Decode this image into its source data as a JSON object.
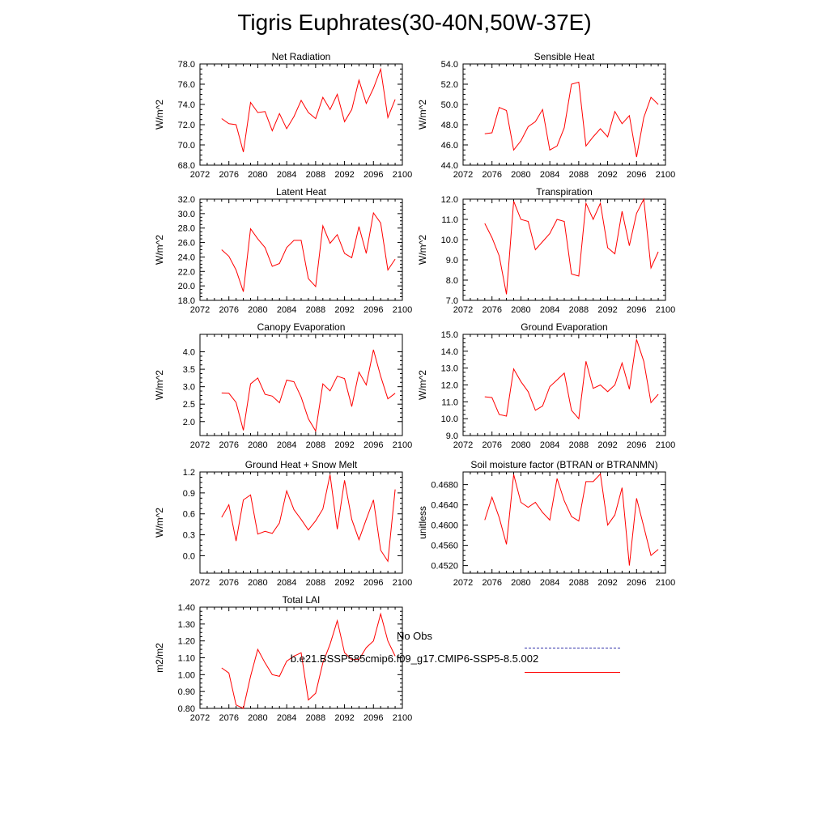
{
  "title": "Tigris Euphrates(30-40N,50W-37E)",
  "legend": {
    "obs_label": "No Obs",
    "model_label": "b.e21.BSSP585cmip6.f09_g17.CMIP6-SSP5-8.5.002",
    "model_color": "#ff0000",
    "obs_color": "#3333aa"
  },
  "chart_data": [
    {
      "type": "line",
      "title": "Net Radiation",
      "ylabel": "W/m^2",
      "xlim": [
        2072,
        2100
      ],
      "xticks": [
        "2072",
        "2076",
        "2080",
        "2084",
        "2088",
        "2092",
        "2096",
        "2100"
      ],
      "ylim": [
        68,
        78
      ],
      "yticks": [
        "68.0",
        "70.0",
        "72.0",
        "74.0",
        "76.0",
        "78.0"
      ],
      "ytick_values": [
        68,
        70,
        72,
        74,
        76,
        78
      ],
      "x": [
        2075,
        2076,
        2077,
        2078,
        2079,
        2080,
        2081,
        2082,
        2083,
        2084,
        2085,
        2086,
        2087,
        2088,
        2089,
        2090,
        2091,
        2092,
        2093,
        2094,
        2095,
        2096,
        2097,
        2098,
        2099
      ],
      "values": [
        72.6,
        72.1,
        72.0,
        69.3,
        74.2,
        73.2,
        73.3,
        71.4,
        73.1,
        71.6,
        72.8,
        74.4,
        73.2,
        72.6,
        74.7,
        73.5,
        75.0,
        72.3,
        73.5,
        76.4,
        74.1,
        75.6,
        77.5,
        72.7,
        74.5
      ]
    },
    {
      "type": "line",
      "title": "Sensible Heat",
      "ylabel": "W/m^2",
      "xlim": [
        2072,
        2100
      ],
      "xticks": [
        "2072",
        "2076",
        "2080",
        "2084",
        "2088",
        "2092",
        "2096",
        "2100"
      ],
      "ylim": [
        44,
        54
      ],
      "yticks": [
        "44.0",
        "46.0",
        "48.0",
        "50.0",
        "52.0",
        "54.0"
      ],
      "ytick_values": [
        44,
        46,
        48,
        50,
        52,
        54
      ],
      "x": [
        2075,
        2076,
        2077,
        2078,
        2079,
        2080,
        2081,
        2082,
        2083,
        2084,
        2085,
        2086,
        2087,
        2088,
        2089,
        2090,
        2091,
        2092,
        2093,
        2094,
        2095,
        2096,
        2097,
        2098,
        2099
      ],
      "values": [
        47.1,
        47.2,
        49.7,
        49.4,
        45.5,
        46.4,
        47.8,
        48.3,
        49.5,
        45.5,
        45.9,
        47.7,
        52.0,
        52.2,
        45.9,
        46.8,
        47.6,
        46.8,
        49.3,
        48.1,
        48.9,
        44.8,
        48.7,
        50.7,
        50.0
      ]
    },
    {
      "type": "line",
      "title": "Latent Heat",
      "ylabel": "W/m^2",
      "xlim": [
        2072,
        2100
      ],
      "xticks": [
        "2072",
        "2076",
        "2080",
        "2084",
        "2088",
        "2092",
        "2096",
        "2100"
      ],
      "ylim": [
        18,
        32
      ],
      "yticks": [
        "18.0",
        "20.0",
        "22.0",
        "24.0",
        "26.0",
        "28.0",
        "30.0",
        "32.0"
      ],
      "ytick_values": [
        18,
        20,
        22,
        24,
        26,
        28,
        30,
        32
      ],
      "x": [
        2075,
        2076,
        2077,
        2078,
        2079,
        2080,
        2081,
        2082,
        2083,
        2084,
        2085,
        2086,
        2087,
        2088,
        2089,
        2090,
        2091,
        2092,
        2093,
        2094,
        2095,
        2096,
        2097,
        2098,
        2099
      ],
      "values": [
        25.0,
        24.1,
        22.2,
        19.2,
        27.9,
        26.5,
        25.3,
        22.7,
        23.1,
        25.3,
        26.3,
        26.3,
        21.0,
        19.9,
        28.3,
        25.9,
        27.1,
        24.5,
        23.9,
        28.2,
        24.5,
        30.1,
        28.7,
        22.2,
        23.7
      ]
    },
    {
      "type": "line",
      "title": "Transpiration",
      "ylabel": "W/m^2",
      "xlim": [
        2072,
        2100
      ],
      "xticks": [
        "2072",
        "2076",
        "2080",
        "2084",
        "2088",
        "2092",
        "2096",
        "2100"
      ],
      "ylim": [
        7,
        12
      ],
      "yticks": [
        "7.0",
        "8.0",
        "9.0",
        "10.0",
        "11.0",
        "12.0"
      ],
      "ytick_values": [
        7,
        8,
        9,
        10,
        11,
        12
      ],
      "x": [
        2075,
        2076,
        2077,
        2078,
        2079,
        2080,
        2081,
        2082,
        2083,
        2084,
        2085,
        2086,
        2087,
        2088,
        2089,
        2090,
        2091,
        2092,
        2093,
        2094,
        2095,
        2096,
        2097,
        2098,
        2099
      ],
      "values": [
        10.8,
        10.1,
        9.2,
        7.3,
        11.9,
        11.0,
        10.9,
        9.5,
        9.9,
        10.3,
        11.0,
        10.9,
        8.3,
        8.2,
        11.8,
        11.0,
        11.8,
        9.6,
        9.3,
        11.4,
        9.7,
        11.3,
        12.0,
        8.6,
        9.4
      ]
    },
    {
      "type": "line",
      "title": "Canopy Evaporation",
      "ylabel": "W/m^2",
      "xlim": [
        2072,
        2100
      ],
      "xticks": [
        "2072",
        "2076",
        "2080",
        "2084",
        "2088",
        "2092",
        "2096",
        "2100"
      ],
      "ylim": [
        1.6,
        4.5
      ],
      "yticks": [
        "2.0",
        "2.5",
        "3.0",
        "3.5",
        "4.0"
      ],
      "ytick_values": [
        2.0,
        2.5,
        3.0,
        3.5,
        4.0
      ],
      "x": [
        2075,
        2076,
        2077,
        2078,
        2079,
        2080,
        2081,
        2082,
        2083,
        2084,
        2085,
        2086,
        2087,
        2088,
        2089,
        2090,
        2091,
        2092,
        2093,
        2094,
        2095,
        2096,
        2097,
        2098,
        2099
      ],
      "values": [
        2.82,
        2.81,
        2.55,
        1.75,
        3.08,
        3.25,
        2.78,
        2.73,
        2.54,
        3.19,
        3.14,
        2.7,
        2.08,
        1.73,
        3.08,
        2.88,
        3.3,
        3.23,
        2.43,
        3.42,
        3.05,
        4.06,
        3.3,
        2.65,
        2.81
      ]
    },
    {
      "type": "line",
      "title": "Ground Evaporation",
      "ylabel": "W/m^2",
      "xlim": [
        2072,
        2100
      ],
      "xticks": [
        "2072",
        "2076",
        "2080",
        "2084",
        "2088",
        "2092",
        "2096",
        "2100"
      ],
      "ylim": [
        9,
        15
      ],
      "yticks": [
        "9.0",
        "10.0",
        "11.0",
        "12.0",
        "13.0",
        "14.0",
        "15.0"
      ],
      "ytick_values": [
        9,
        10,
        11,
        12,
        13,
        14,
        15
      ],
      "x": [
        2075,
        2076,
        2077,
        2078,
        2079,
        2080,
        2081,
        2082,
        2083,
        2084,
        2085,
        2086,
        2087,
        2088,
        2089,
        2090,
        2091,
        2092,
        2093,
        2094,
        2095,
        2096,
        2097,
        2098,
        2099
      ],
      "values": [
        11.3,
        11.25,
        10.25,
        10.15,
        12.95,
        12.2,
        11.6,
        10.5,
        10.75,
        11.9,
        12.3,
        12.7,
        10.5,
        10.0,
        13.4,
        11.8,
        12.0,
        11.6,
        12.0,
        13.3,
        11.75,
        14.7,
        13.4,
        10.95,
        11.45
      ]
    },
    {
      "type": "line",
      "title": "Ground Heat + Snow Melt",
      "ylabel": "W/m^2",
      "xlim": [
        2072,
        2100
      ],
      "xticks": [
        "2072",
        "2076",
        "2080",
        "2084",
        "2088",
        "2092",
        "2096",
        "2100"
      ],
      "ylim": [
        -0.25,
        1.2
      ],
      "yticks": [
        "0.0",
        "0.3",
        "0.6",
        "0.9",
        "1.2"
      ],
      "ytick_values": [
        0.0,
        0.3,
        0.6,
        0.9,
        1.2
      ],
      "x": [
        2075,
        2076,
        2077,
        2078,
        2079,
        2080,
        2081,
        2082,
        2083,
        2084,
        2085,
        2086,
        2087,
        2088,
        2089,
        2090,
        2091,
        2092,
        2093,
        2094,
        2095,
        2096,
        2097,
        2098,
        2099
      ],
      "values": [
        0.55,
        0.73,
        0.21,
        0.8,
        0.87,
        0.31,
        0.35,
        0.32,
        0.47,
        0.93,
        0.66,
        0.52,
        0.37,
        0.5,
        0.67,
        1.16,
        0.38,
        1.08,
        0.52,
        0.23,
        0.52,
        0.8,
        0.08,
        -0.08,
        0.95
      ]
    },
    {
      "type": "line",
      "title": "Soil moisture factor (BTRAN or BTRANMN)",
      "ylabel": "unitless",
      "xlim": [
        2072,
        2100
      ],
      "xticks": [
        "2072",
        "2076",
        "2080",
        "2084",
        "2088",
        "2092",
        "2096",
        "2100"
      ],
      "ylim": [
        0.4505,
        0.4705
      ],
      "yticks": [
        "0.4520",
        "0.4560",
        "0.4600",
        "0.4640",
        "0.4680"
      ],
      "ytick_values": [
        0.452,
        0.456,
        0.46,
        0.464,
        0.468
      ],
      "x": [
        2075,
        2076,
        2077,
        2078,
        2079,
        2080,
        2081,
        2082,
        2083,
        2084,
        2085,
        2086,
        2087,
        2088,
        2089,
        2090,
        2091,
        2092,
        2093,
        2094,
        2095,
        2096,
        2097,
        2098,
        2099
      ],
      "values": [
        0.461,
        0.4655,
        0.4615,
        0.4562,
        0.47,
        0.4645,
        0.4635,
        0.4645,
        0.4625,
        0.461,
        0.4692,
        0.4648,
        0.4617,
        0.4608,
        0.4686,
        0.4686,
        0.4701,
        0.46,
        0.462,
        0.4674,
        0.452,
        0.4653,
        0.4597,
        0.454,
        0.4552
      ]
    },
    {
      "type": "line",
      "title": "Total LAI",
      "ylabel": "m2/m2",
      "xlim": [
        2072,
        2100
      ],
      "xticks": [
        "2072",
        "2076",
        "2080",
        "2084",
        "2088",
        "2092",
        "2096",
        "2100"
      ],
      "ylim": [
        0.8,
        1.4
      ],
      "yticks": [
        "0.80",
        "0.90",
        "1.00",
        "1.10",
        "1.20",
        "1.30",
        "1.40"
      ],
      "ytick_values": [
        0.8,
        0.9,
        1.0,
        1.1,
        1.2,
        1.3,
        1.4
      ],
      "x": [
        2075,
        2076,
        2077,
        2078,
        2079,
        2080,
        2081,
        2082,
        2083,
        2084,
        2085,
        2086,
        2087,
        2088,
        2089,
        2090,
        2091,
        2092,
        2093,
        2094,
        2095,
        2096,
        2097,
        2098,
        2099
      ],
      "values": [
        1.04,
        1.01,
        0.82,
        0.8,
        0.99,
        1.15,
        1.07,
        1.0,
        0.99,
        1.08,
        1.11,
        1.13,
        0.85,
        0.89,
        1.07,
        1.18,
        1.32,
        1.13,
        1.09,
        1.09,
        1.16,
        1.2,
        1.36,
        1.2,
        1.11
      ]
    }
  ]
}
